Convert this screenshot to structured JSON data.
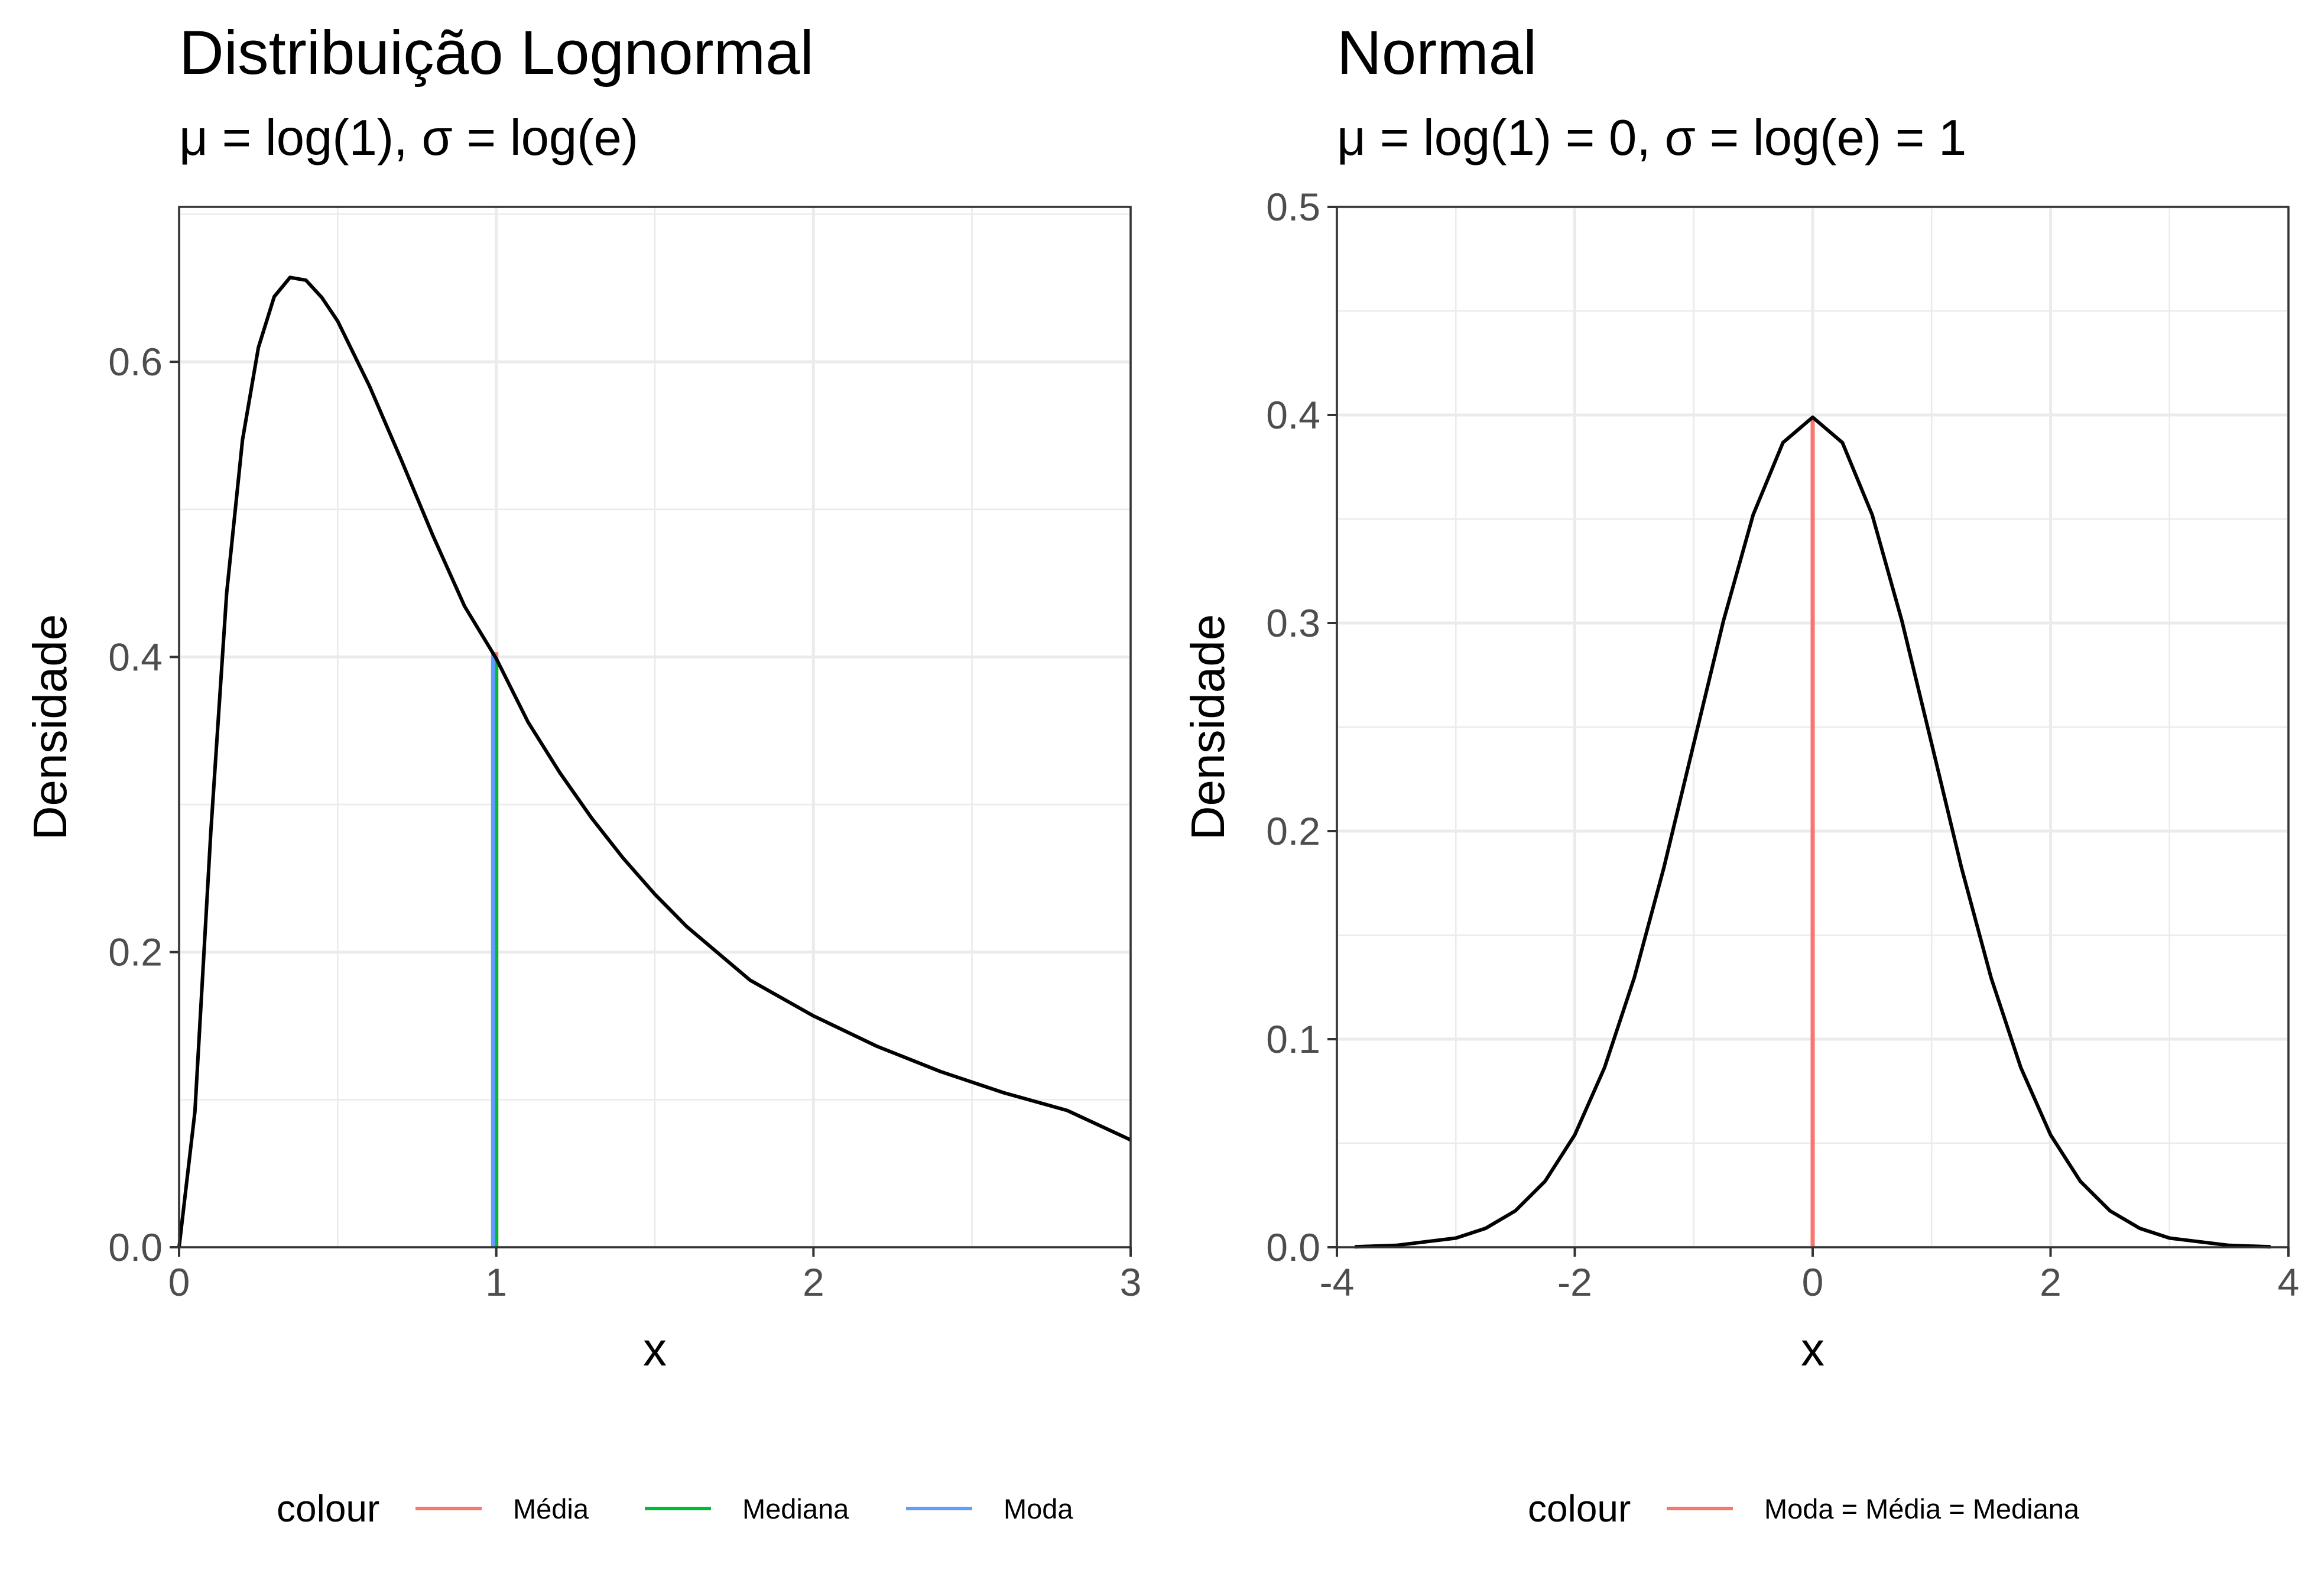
{
  "chart_data": [
    {
      "type": "line",
      "title": "Distribuição Lognormal",
      "subtitle": "μ = log(1), σ = log(e)",
      "xlabel": "x",
      "ylabel": "Densidade",
      "xlim": [
        0,
        3
      ],
      "ylim": [
        0,
        0.705
      ],
      "xticks": [
        0,
        1,
        2,
        3
      ],
      "xtick_labels": [
        "0",
        "1",
        "2",
        "3"
      ],
      "yticks": [
        0,
        0.2,
        0.4,
        0.6
      ],
      "ytick_labels": [
        "0.0",
        "0.2",
        "0.4",
        "0.6"
      ],
      "grid": true,
      "curve": {
        "color": "#000000",
        "x": [
          0,
          0.05,
          0.1,
          0.15,
          0.2,
          0.25,
          0.3,
          0.35,
          0.4,
          0.45,
          0.5,
          0.6,
          0.7,
          0.8,
          0.9,
          1.0,
          1.1,
          1.2,
          1.3,
          1.4,
          1.5,
          1.6,
          1.8,
          2.0,
          2.2,
          2.4,
          2.6,
          2.8,
          3.0
        ],
        "y": [
          0,
          0.0919,
          0.2815,
          0.4433,
          0.5471,
          0.6097,
          0.6442,
          0.6572,
          0.6553,
          0.6436,
          0.6276,
          0.5837,
          0.5338,
          0.4824,
          0.4344,
          0.3989,
          0.356,
          0.3217,
          0.291,
          0.2637,
          0.2392,
          0.2174,
          0.181,
          0.1568,
          0.1362,
          0.1191,
          0.1047,
          0.0927,
          0.0727
        ]
      },
      "vlines": [
        {
          "name": "Média",
          "x": 1.0,
          "y": 0.4033,
          "color": "#F8766D"
        },
        {
          "name": "Mediana",
          "x": 1.0,
          "y": 0.3989,
          "color": "#00BA38"
        },
        {
          "name": "Moda",
          "x": 0.99,
          "y": 0.4033,
          "color": "#619CFF"
        }
      ],
      "legend": {
        "title": "colour",
        "position": "bottom",
        "entries": [
          {
            "label": "Média",
            "color": "#F8766D"
          },
          {
            "label": "Mediana",
            "color": "#00BA38"
          },
          {
            "label": "Moda",
            "color": "#619CFF"
          }
        ]
      }
    },
    {
      "type": "line",
      "title": "Normal",
      "subtitle": "μ = log(1) = 0, σ = log(e) = 1",
      "xlabel": "x",
      "ylabel": "Densidade",
      "xlim": [
        -4,
        4
      ],
      "ylim": [
        0,
        0.5
      ],
      "xticks": [
        -4,
        -2,
        0,
        2,
        4
      ],
      "xtick_labels": [
        "-4",
        "-2",
        "0",
        "2",
        "4"
      ],
      "yticks": [
        0,
        0.1,
        0.2,
        0.3,
        0.4,
        0.5
      ],
      "ytick_labels": [
        "0.0",
        "0.1",
        "0.2",
        "0.3",
        "0.4",
        "0.5"
      ],
      "grid": true,
      "curve": {
        "color": "#000000",
        "x": [
          -3.85,
          -3.5,
          -3.0,
          -2.75,
          -2.5,
          -2.25,
          -2.0,
          -1.75,
          -1.5,
          -1.25,
          -1.0,
          -0.75,
          -0.5,
          -0.25,
          0,
          0.25,
          0.5,
          0.75,
          1.0,
          1.25,
          1.5,
          1.75,
          2.0,
          2.25,
          2.5,
          2.75,
          3.0,
          3.5,
          3.85
        ],
        "y": [
          0.0002,
          0.0009,
          0.0044,
          0.0091,
          0.0175,
          0.0317,
          0.054,
          0.0863,
          0.1295,
          0.1826,
          0.242,
          0.3011,
          0.3521,
          0.3867,
          0.3989,
          0.3867,
          0.3521,
          0.3011,
          0.242,
          0.1826,
          0.1295,
          0.0863,
          0.054,
          0.0317,
          0.0175,
          0.0091,
          0.0044,
          0.0009,
          0.0002
        ]
      },
      "vlines": [
        {
          "name": "Moda = Média = Mediana",
          "x": 0,
          "y": 0.3989,
          "color": "#F8766D"
        }
      ],
      "legend": {
        "title": "colour",
        "position": "bottom",
        "entries": [
          {
            "label": "Moda = Média = Mediana",
            "color": "#F8766D"
          }
        ]
      }
    }
  ]
}
